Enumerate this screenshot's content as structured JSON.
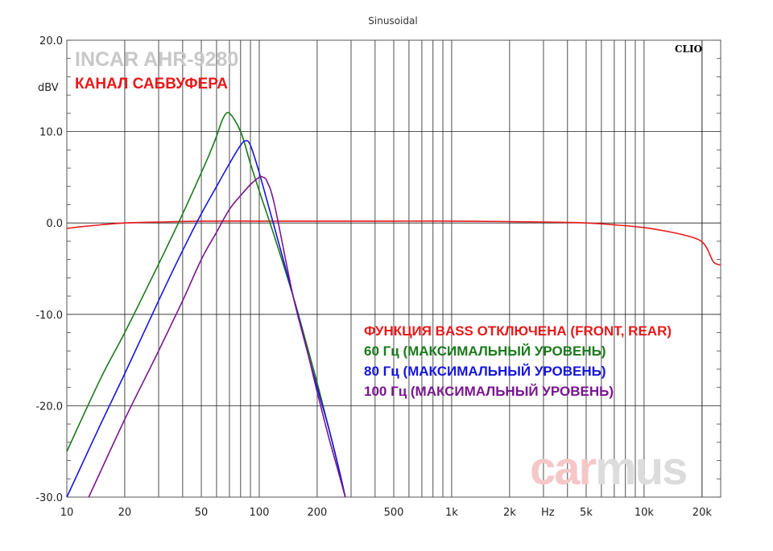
{
  "chart_data": {
    "type": "line",
    "title": "Sinusoidal",
    "brand": "CLIO",
    "header_line1": "INCAR AHR-9280",
    "header_line2": "КАНАЛ САБВУФЕРА",
    "watermark_part1": "car",
    "watermark_part2": "mus",
    "ylabel": "dBV",
    "xlabel": "Hz",
    "x_scale": "log",
    "xlim": [
      10,
      25000
    ],
    "ylim": [
      -30,
      20
    ],
    "grid": true,
    "legend_placement": "center-right",
    "y_ticks": [
      {
        "value": 20,
        "label": "20.0"
      },
      {
        "value": 10,
        "label": "10.0"
      },
      {
        "value": 0,
        "label": "0.0"
      },
      {
        "value": -10,
        "label": "-10.0"
      },
      {
        "value": -20,
        "label": "-20.0"
      },
      {
        "value": -30,
        "label": "-30.0"
      }
    ],
    "x_ticks": [
      {
        "value": 10,
        "label": "10"
      },
      {
        "value": 20,
        "label": "20"
      },
      {
        "value": 50,
        "label": "50"
      },
      {
        "value": 100,
        "label": "100"
      },
      {
        "value": 200,
        "label": "200"
      },
      {
        "value": 500,
        "label": "500"
      },
      {
        "value": 1000,
        "label": "1k"
      },
      {
        "value": 2000,
        "label": "2k"
      },
      {
        "value": 5000,
        "label": "5k"
      },
      {
        "value": 10000,
        "label": "10k"
      },
      {
        "value": 20000,
        "label": "20k"
      }
    ],
    "series": [
      {
        "name": "ФУНКЦИЯ BASS ОТКЛЮЧЕНА (FRONT,  REAR)",
        "color": "#e8191b",
        "x": [
          10,
          12,
          15,
          20,
          30,
          50,
          100,
          200,
          500,
          1000,
          2000,
          3000,
          5000,
          7000,
          10000,
          13000,
          16000,
          18000,
          19500,
          20500,
          21500,
          23000,
          25000
        ],
        "y": [
          -0.6,
          -0.4,
          -0.2,
          0.0,
          0.1,
          0.2,
          0.2,
          0.2,
          0.2,
          0.2,
          0.15,
          0.1,
          0.0,
          -0.2,
          -0.5,
          -0.9,
          -1.3,
          -1.6,
          -1.9,
          -2.3,
          -3.0,
          -4.3,
          -4.6
        ]
      },
      {
        "name": "60 Гц (МАКСИМАЛЬНЫЙ УРОВЕНЬ)",
        "color": "#1a7a1a",
        "x": [
          10,
          15,
          20,
          30,
          40,
          50,
          55,
          60,
          65,
          70,
          80,
          90,
          100,
          120,
          150,
          180,
          200,
          230,
          260,
          280
        ],
        "y": [
          -25,
          -17,
          -12,
          -4.5,
          1.0,
          5.5,
          7.5,
          9.5,
          11.5,
          12.0,
          10.0,
          6.5,
          3.5,
          -1.5,
          -8.0,
          -14.0,
          -17.5,
          -22.5,
          -27.0,
          -30
        ]
      },
      {
        "name": "80 Гц (МАКСИМАЛЬНЫЙ УРОВЕНЬ)",
        "color": "#1515e0",
        "x": [
          10,
          15,
          20,
          30,
          40,
          50,
          60,
          70,
          80,
          85,
          90,
          100,
          120,
          150,
          180,
          200,
          230,
          260,
          280
        ],
        "y": [
          -30,
          -22,
          -16.5,
          -8.5,
          -3.0,
          1.0,
          4.0,
          6.5,
          8.5,
          9.0,
          8.5,
          5.5,
          -0.5,
          -8.0,
          -14.5,
          -18.0,
          -22.5,
          -27.0,
          -30
        ]
      },
      {
        "name": "100 Гц (МАКСИМАЛЬНЫЙ УРОВЕНЬ)",
        "color": "#7a1590",
        "x": [
          13,
          20,
          30,
          40,
          50,
          60,
          70,
          80,
          90,
          100,
          105,
          110,
          120,
          150,
          180,
          200,
          230,
          260,
          280
        ],
        "y": [
          -30,
          -21.5,
          -14.0,
          -8.5,
          -4.0,
          -1.0,
          1.5,
          3.0,
          4.2,
          5.0,
          5.0,
          4.5,
          2.0,
          -8.0,
          -14.5,
          -18.5,
          -23.5,
          -27.5,
          -30
        ]
      }
    ]
  }
}
